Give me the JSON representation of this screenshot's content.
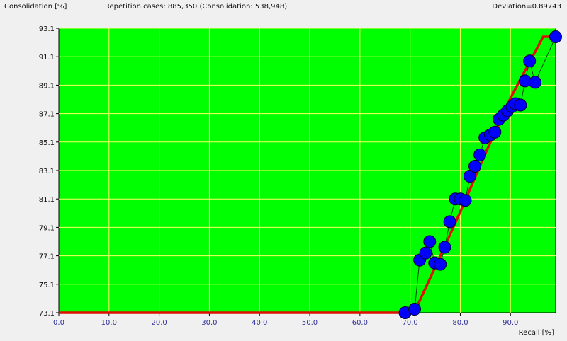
{
  "header": {
    "ylabel": "Consolidation [%]",
    "cases": "Repetition cases: 885,350 (Consolidation: 538,948)",
    "deviation": "Deviation=0.89743"
  },
  "chart_data": {
    "type": "scatter",
    "xlabel": "Recall [%]",
    "ylabel": "Consolidation [%]",
    "xlim": [
      0,
      99
    ],
    "ylim": [
      73.1,
      93.1
    ],
    "xticks": [
      "0.0",
      "10.0",
      "20.0",
      "30.0",
      "40.0",
      "50.0",
      "60.0",
      "70.0",
      "80.0",
      "90.0"
    ],
    "yticks": [
      "73.1",
      "75.1",
      "77.1",
      "79.1",
      "81.1",
      "83.1",
      "85.1",
      "87.1",
      "89.1",
      "91.1",
      "93.1"
    ],
    "grid": true,
    "colors": {
      "background": "#00ff00",
      "grid": "#ffff66",
      "points": "#0000ff",
      "connector": "#004400",
      "fit": "#dd1100"
    },
    "points": [
      [
        69.0,
        73.1
      ],
      [
        70.9,
        73.35
      ],
      [
        71.9,
        76.8
      ],
      [
        73.1,
        77.3
      ],
      [
        73.9,
        78.1
      ],
      [
        74.9,
        76.6
      ],
      [
        76.0,
        76.5
      ],
      [
        76.9,
        77.7
      ],
      [
        77.9,
        79.5
      ],
      [
        79.0,
        81.1
      ],
      [
        80.0,
        81.1
      ],
      [
        81.0,
        81.0
      ],
      [
        81.9,
        82.7
      ],
      [
        82.9,
        83.4
      ],
      [
        83.9,
        84.2
      ],
      [
        84.9,
        85.4
      ],
      [
        86.0,
        85.6
      ],
      [
        86.9,
        85.8
      ],
      [
        87.7,
        86.7
      ],
      [
        88.6,
        87.0
      ],
      [
        89.4,
        87.3
      ],
      [
        90.3,
        87.6
      ],
      [
        91.0,
        87.8
      ],
      [
        92.0,
        87.7
      ],
      [
        92.9,
        89.4
      ],
      [
        93.8,
        90.8
      ],
      [
        94.9,
        89.3
      ],
      [
        99.0,
        92.5
      ]
    ],
    "fit_line": [
      [
        0,
        73.1
      ],
      [
        70.8,
        73.1
      ],
      [
        75,
        76.3
      ],
      [
        80,
        80.2
      ],
      [
        85,
        84.3
      ],
      [
        90,
        88.2
      ],
      [
        96.5,
        92.5
      ],
      [
        99,
        92.5
      ]
    ]
  }
}
